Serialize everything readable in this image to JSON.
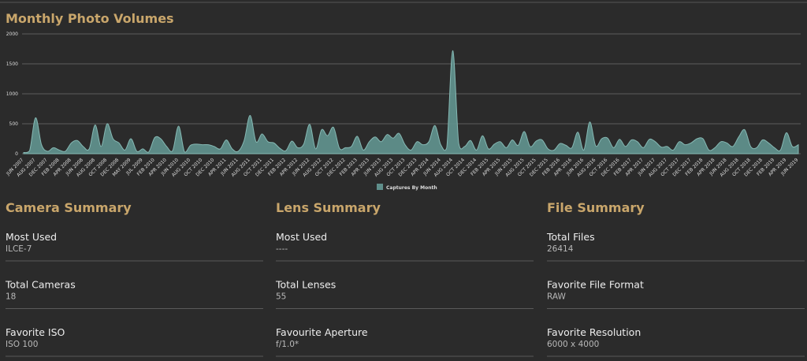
{
  "chart_data": {
    "type": "area",
    "title": "Monthly Photo Volumes",
    "categories": [
      "JUN 2007",
      null,
      "AUG 2007",
      null,
      "DEC 2007",
      null,
      "FEB 2008",
      null,
      "APR 2008",
      null,
      "JUN 2008",
      null,
      "AUG 2008",
      null,
      "OCT 2008",
      null,
      "DEC 2008",
      null,
      "MAY 2009",
      null,
      "JUL 2009",
      null,
      "FEB 2010",
      null,
      "APR 2010",
      null,
      "JUN 2010",
      null,
      "AUG 2010",
      null,
      "OCT 2010",
      null,
      "DEC 2010",
      null,
      "APR 2011",
      null,
      "JUN 2011",
      null,
      "AUG 2011",
      null,
      "OCT 2011",
      null,
      "DEC 2011",
      null,
      "FEB 2012",
      null,
      "APR 2012",
      null,
      "JUN 2012",
      null,
      "AUG 2012",
      null,
      "OCT 2012",
      null,
      "DEC 2012",
      null,
      "FEB 2013",
      null,
      "APR 2013",
      null,
      "JUN 2013",
      null,
      "AUG 2013",
      null,
      "OCT 2013",
      null,
      "DEC 2013",
      null,
      "APR 2014",
      null,
      "JUN 2014",
      null,
      "AUG 2014",
      null,
      "OCT 2014",
      null,
      "DEC 2014",
      null,
      "FEB 2015",
      null,
      "APR 2015",
      null,
      "JUN 2015",
      null,
      "AUG 2015",
      null,
      "OCT 2015",
      null,
      "DEC 2015",
      null,
      "FEB 2016",
      null,
      "APR 2016",
      null,
      "JUN 2016",
      null,
      "AUG 2016",
      null,
      "OCT 2016",
      null,
      "DEC 2016",
      null,
      "FEB 2017",
      null,
      "APR 2017",
      null,
      "JUN 2017",
      null,
      "AUG 2017",
      null,
      "OCT 2017",
      null,
      "DEC 2017",
      null,
      "FEB 2018",
      null,
      "APR 2018",
      null,
      "JUN 2018",
      null,
      "AUG 2018",
      null,
      "OCT 2018",
      null,
      "DEC 2018",
      null,
      "FEB 2019",
      null,
      "APR 2019",
      null,
      "JUN 2019"
    ],
    "series": [
      {
        "name": "Captures By Month",
        "color": "#5f8f8b",
        "values": [
          20,
          50,
          600,
          150,
          40,
          100,
          60,
          40,
          180,
          220,
          120,
          80,
          480,
          120,
          500,
          250,
          180,
          60,
          250,
          40,
          80,
          30,
          270,
          250,
          120,
          50,
          460,
          30,
          140,
          160,
          150,
          150,
          120,
          80,
          230,
          80,
          40,
          220,
          640,
          200,
          330,
          200,
          180,
          90,
          50,
          210,
          100,
          160,
          490,
          80,
          400,
          300,
          440,
          90,
          100,
          120,
          290,
          60,
          200,
          280,
          200,
          320,
          260,
          340,
          150,
          60,
          200,
          150,
          200,
          470,
          150,
          100,
          1720,
          180,
          120,
          220,
          60,
          300,
          80,
          160,
          200,
          100,
          230,
          140,
          370,
          120,
          210,
          230,
          80,
          60,
          170,
          140,
          100,
          360,
          60,
          530,
          130,
          250,
          260,
          100,
          240,
          120,
          230,
          200,
          100,
          240,
          200,
          110,
          120,
          60,
          200,
          150,
          180,
          250,
          250,
          60,
          100,
          200,
          180,
          120,
          280,
          400,
          120,
          100,
          230,
          180,
          100,
          60,
          350,
          120,
          150
        ]
      }
    ],
    "ylim": [
      0,
      2000
    ],
    "yticks": [
      0,
      500,
      1000,
      1500,
      2000
    ],
    "grid": true,
    "legend": "bottom"
  },
  "summaries": [
    {
      "title": "Camera Summary",
      "items": [
        {
          "label": "Most Used",
          "value": "ILCE-7"
        },
        {
          "label": "Total Cameras",
          "value": "18"
        },
        {
          "label": "Favorite ISO",
          "value": "ISO 100"
        }
      ]
    },
    {
      "title": "Lens Summary",
      "items": [
        {
          "label": "Most Used",
          "value": "----"
        },
        {
          "label": "Total Lenses",
          "value": "55"
        },
        {
          "label": "Favourite Aperture",
          "value": "f/1.0*"
        }
      ]
    },
    {
      "title": "File Summary",
      "items": [
        {
          "label": "Total Files",
          "value": "26414"
        },
        {
          "label": "Favorite File Format",
          "value": "RAW"
        },
        {
          "label": "Favorite Resolution",
          "value": "6000 x 4000"
        }
      ]
    }
  ]
}
